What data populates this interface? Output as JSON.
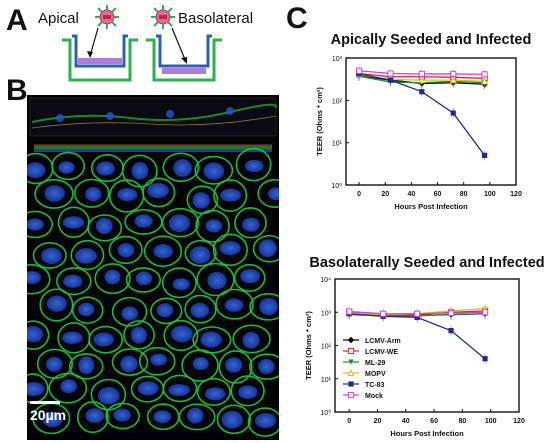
{
  "panels": {
    "a": "A",
    "b": "B",
    "c": "C"
  },
  "panel_a": {
    "apical": "Apical",
    "basolateral": "Basolateral"
  },
  "panel_b": {
    "scale_bar": "20µm"
  },
  "legend": [
    {
      "name": "LCMV-Arm",
      "color": "#000000",
      "marker": "diamond"
    },
    {
      "name": "LCMV-WE",
      "color": "#d62728",
      "marker": "square-open"
    },
    {
      "name": "ML-29",
      "color": "#1a8f3a",
      "marker": "triangle-down"
    },
    {
      "name": "MOPV",
      "color": "#d4c21a",
      "marker": "triangle-open"
    },
    {
      "name": "TC-83",
      "color": "#1f2b8c",
      "marker": "square"
    },
    {
      "name": "Mock",
      "color": "#d63fd6",
      "marker": "square-open"
    }
  ],
  "chart_data": [
    {
      "type": "line",
      "title": "Apically Seeded and Infected",
      "xlabel": "Hours Post Infection",
      "ylabel": "TEER (Ohms * cm²)",
      "ylog": true,
      "xlim": [
        -10,
        120
      ],
      "ylim": [
        1,
        1000
      ],
      "xticks": [
        "0",
        "20",
        "40",
        "60",
        "80",
        "100",
        "120"
      ],
      "yticks": [
        "10⁰",
        "10¹",
        "10²",
        "10³"
      ],
      "x": [
        0,
        24,
        48,
        72,
        96
      ],
      "series": [
        {
          "name": "LCMV-Arm",
          "values": [
            380,
            300,
            250,
            260,
            240
          ]
        },
        {
          "name": "LCMV-WE",
          "values": [
            430,
            360,
            360,
            350,
            330
          ]
        },
        {
          "name": "ML-29",
          "values": [
            370,
            270,
            260,
            280,
            260
          ]
        },
        {
          "name": "MOPV",
          "values": [
            400,
            310,
            300,
            300,
            280
          ]
        },
        {
          "name": "TC-83",
          "values": [
            420,
            300,
            160,
            50,
            5
          ]
        },
        {
          "name": "Mock",
          "values": [
            500,
            430,
            420,
            420,
            410
          ]
        }
      ]
    },
    {
      "type": "line",
      "title": "Basolaterally Seeded and Infected",
      "xlabel": "Hours Post Infection",
      "ylabel": "TEER (Ohms * cm²)",
      "ylog": true,
      "xlim": [
        -10,
        120
      ],
      "ylim": [
        1,
        10000
      ],
      "xticks": [
        "0",
        "20",
        "40",
        "60",
        "80",
        "100",
        "120"
      ],
      "yticks": [
        "10⁰",
        "10¹",
        "10²",
        "10³",
        "10⁴"
      ],
      "x": [
        0,
        24,
        48,
        72,
        96
      ],
      "series": [
        {
          "name": "LCMV-Arm",
          "values": [
            900,
            800,
            800,
            850,
            900
          ]
        },
        {
          "name": "LCMV-WE",
          "values": [
            1000,
            850,
            850,
            1000,
            1100
          ]
        },
        {
          "name": "ML-29",
          "values": [
            850,
            780,
            780,
            850,
            900
          ]
        },
        {
          "name": "MOPV",
          "values": [
            950,
            850,
            900,
            1100,
            1300
          ]
        },
        {
          "name": "TC-83",
          "values": [
            900,
            750,
            700,
            280,
            40
          ]
        },
        {
          "name": "Mock",
          "values": [
            1050,
            900,
            900,
            950,
            1000
          ]
        }
      ]
    }
  ]
}
